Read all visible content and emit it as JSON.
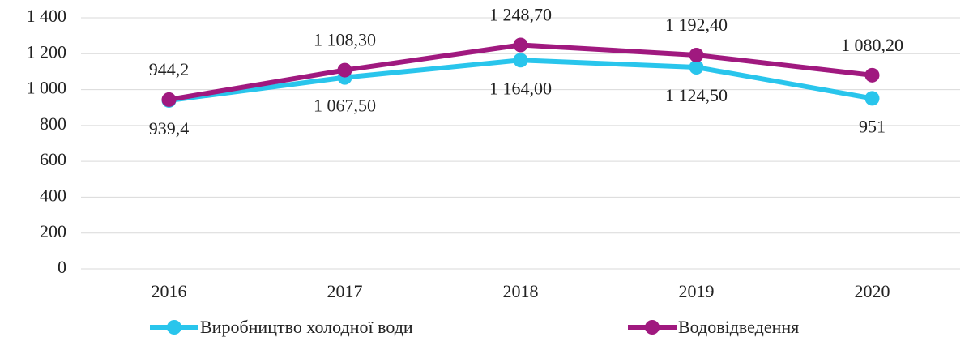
{
  "chart_data": {
    "type": "line",
    "categories": [
      "2016",
      "2017",
      "2018",
      "2019",
      "2020"
    ],
    "series": [
      {
        "name": "Виробництво холодної води",
        "color": "#29c5ec",
        "values": [
          939.4,
          1067.5,
          1164.0,
          1124.5,
          951
        ],
        "value_labels": [
          "939,4",
          "1 067,50",
          "1 164,00",
          "1 124,50",
          "951"
        ]
      },
      {
        "name": "Водовідведення",
        "color": "#a0197f",
        "values": [
          944.2,
          1108.3,
          1248.7,
          1192.4,
          1080.2
        ],
        "value_labels": [
          "944,2",
          "1 108,30",
          "1 248,70",
          "1 192,40",
          "1 080,20"
        ]
      }
    ],
    "ylim": [
      0,
      1400
    ],
    "yticks": [
      0,
      200,
      400,
      600,
      800,
      {
        "value": 1000,
        "label": "1 000"
      },
      {
        "value": 1200,
        "label": "1 200"
      },
      {
        "value": 1400,
        "label": "1 400"
      }
    ],
    "grid": true,
    "legend": "bottom"
  }
}
